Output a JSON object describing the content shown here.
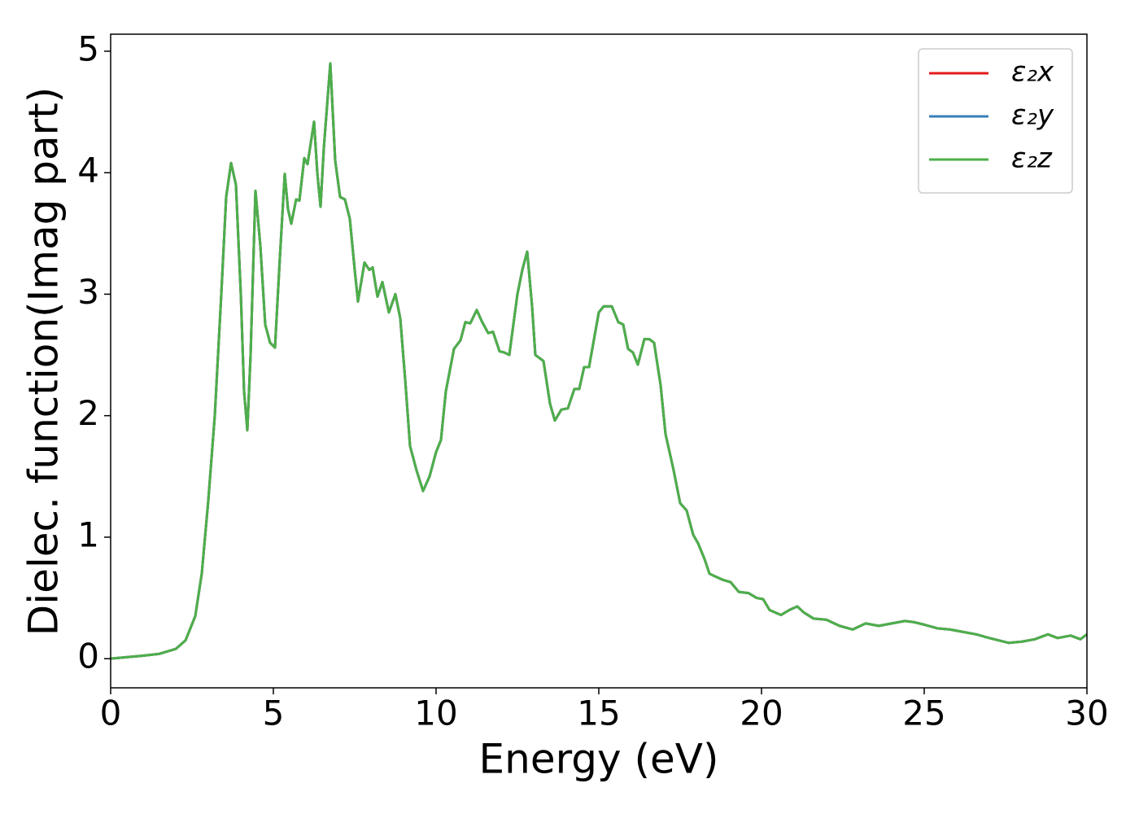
{
  "chart_data": {
    "type": "line",
    "xlabel": "Energy (eV)",
    "ylabel": "Dielec. function(Imag part)",
    "x": [
      0,
      1,
      1.5,
      2,
      2.3,
      2.6,
      2.8,
      3.0,
      3.2,
      3.4,
      3.55,
      3.7,
      3.85,
      4.0,
      4.1,
      4.2,
      4.3,
      4.45,
      4.6,
      4.75,
      4.9,
      5.05,
      5.2,
      5.35,
      5.45,
      5.55,
      5.7,
      5.8,
      5.95,
      6.05,
      6.25,
      6.35,
      6.45,
      6.55,
      6.75,
      6.9,
      7.05,
      7.2,
      7.35,
      7.5,
      7.6,
      7.8,
      7.95,
      8.05,
      8.2,
      8.35,
      8.55,
      8.75,
      8.9,
      9.05,
      9.2,
      9.4,
      9.6,
      9.8,
      10.0,
      10.15,
      10.3,
      10.55,
      10.75,
      10.9,
      11.05,
      11.25,
      11.4,
      11.6,
      11.75,
      11.95,
      12.1,
      12.25,
      12.5,
      12.65,
      12.8,
      12.95,
      13.05,
      13.3,
      13.5,
      13.65,
      13.85,
      14.05,
      14.25,
      14.4,
      14.55,
      14.7,
      15.0,
      15.15,
      15.4,
      15.6,
      15.75,
      15.9,
      16.05,
      16.2,
      16.4,
      16.55,
      16.7,
      16.9,
      17.05,
      17.3,
      17.5,
      17.7,
      17.9,
      18.05,
      18.25,
      18.4,
      18.55,
      18.8,
      19.05,
      19.3,
      19.6,
      19.85,
      20.05,
      20.25,
      20.6,
      20.85,
      21.1,
      21.3,
      21.6,
      22.0,
      22.4,
      22.8,
      23.2,
      23.6,
      24.0,
      24.4,
      24.7,
      25.0,
      25.4,
      25.8,
      26.2,
      26.6,
      27.0,
      27.3,
      27.6,
      28.0,
      28.4,
      28.8,
      29.1,
      29.5,
      29.8,
      30.0
    ],
    "series": [
      {
        "name": "ε₂x",
        "color": "#e41a1c",
        "values": [
          0,
          0.025,
          0.04,
          0.08,
          0.15,
          0.35,
          0.7,
          1.3,
          2.0,
          3.0,
          3.8,
          4.08,
          3.9,
          3.0,
          2.2,
          1.88,
          2.5,
          3.85,
          3.4,
          2.75,
          2.6,
          2.56,
          3.3,
          3.99,
          3.7,
          3.58,
          3.78,
          3.77,
          4.12,
          4.07,
          4.42,
          4.0,
          3.72,
          4.2,
          4.9,
          4.1,
          3.8,
          3.78,
          3.62,
          3.2,
          2.94,
          3.26,
          3.2,
          3.22,
          2.98,
          3.1,
          2.85,
          3.0,
          2.8,
          2.3,
          1.75,
          1.55,
          1.38,
          1.5,
          1.7,
          1.8,
          2.2,
          2.55,
          2.62,
          2.77,
          2.76,
          2.87,
          2.78,
          2.68,
          2.69,
          2.53,
          2.52,
          2.5,
          3.0,
          3.2,
          3.35,
          2.9,
          2.5,
          2.45,
          2.1,
          1.96,
          2.05,
          2.06,
          2.22,
          2.22,
          2.4,
          2.4,
          2.85,
          2.9,
          2.9,
          2.77,
          2.75,
          2.55,
          2.52,
          2.42,
          2.63,
          2.63,
          2.6,
          2.25,
          1.85,
          1.55,
          1.28,
          1.22,
          1.02,
          0.95,
          0.82,
          0.7,
          0.68,
          0.65,
          0.63,
          0.55,
          0.54,
          0.5,
          0.49,
          0.4,
          0.36,
          0.4,
          0.43,
          0.38,
          0.33,
          0.32,
          0.27,
          0.24,
          0.29,
          0.27,
          0.29,
          0.31,
          0.3,
          0.28,
          0.25,
          0.24,
          0.22,
          0.2,
          0.17,
          0.15,
          0.13,
          0.14,
          0.16,
          0.2,
          0.17,
          0.19,
          0.16,
          0.2
        ]
      },
      {
        "name": "ε₂y",
        "color": "#377eb8",
        "values": [
          0,
          0.025,
          0.04,
          0.08,
          0.15,
          0.35,
          0.7,
          1.3,
          2.0,
          3.0,
          3.8,
          4.08,
          3.9,
          3.0,
          2.2,
          1.88,
          2.5,
          3.85,
          3.4,
          2.75,
          2.6,
          2.56,
          3.3,
          3.99,
          3.7,
          3.58,
          3.78,
          3.77,
          4.12,
          4.07,
          4.42,
          4.0,
          3.72,
          4.2,
          4.9,
          4.1,
          3.8,
          3.78,
          3.62,
          3.2,
          2.94,
          3.26,
          3.2,
          3.22,
          2.98,
          3.1,
          2.85,
          3.0,
          2.8,
          2.3,
          1.75,
          1.55,
          1.38,
          1.5,
          1.7,
          1.8,
          2.2,
          2.55,
          2.62,
          2.77,
          2.76,
          2.87,
          2.78,
          2.68,
          2.69,
          2.53,
          2.52,
          2.5,
          3.0,
          3.2,
          3.35,
          2.9,
          2.5,
          2.45,
          2.1,
          1.96,
          2.05,
          2.06,
          2.22,
          2.22,
          2.4,
          2.4,
          2.85,
          2.9,
          2.9,
          2.77,
          2.75,
          2.55,
          2.52,
          2.42,
          2.63,
          2.63,
          2.6,
          2.25,
          1.85,
          1.55,
          1.28,
          1.22,
          1.02,
          0.95,
          0.82,
          0.7,
          0.68,
          0.65,
          0.63,
          0.55,
          0.54,
          0.5,
          0.49,
          0.4,
          0.36,
          0.4,
          0.43,
          0.38,
          0.33,
          0.32,
          0.27,
          0.24,
          0.29,
          0.27,
          0.29,
          0.31,
          0.3,
          0.28,
          0.25,
          0.24,
          0.22,
          0.2,
          0.17,
          0.15,
          0.13,
          0.14,
          0.16,
          0.2,
          0.17,
          0.19,
          0.16,
          0.2
        ]
      },
      {
        "name": "ε₂z",
        "color": "#4daf4a",
        "values": [
          0,
          0.025,
          0.04,
          0.08,
          0.15,
          0.35,
          0.7,
          1.3,
          2.0,
          3.0,
          3.8,
          4.08,
          3.9,
          3.0,
          2.2,
          1.88,
          2.5,
          3.85,
          3.4,
          2.75,
          2.6,
          2.56,
          3.3,
          3.99,
          3.7,
          3.58,
          3.78,
          3.77,
          4.12,
          4.07,
          4.42,
          4.0,
          3.72,
          4.2,
          4.9,
          4.1,
          3.8,
          3.78,
          3.62,
          3.2,
          2.94,
          3.26,
          3.2,
          3.22,
          2.98,
          3.1,
          2.85,
          3.0,
          2.8,
          2.3,
          1.75,
          1.55,
          1.38,
          1.5,
          1.7,
          1.8,
          2.2,
          2.55,
          2.62,
          2.77,
          2.76,
          2.87,
          2.78,
          2.68,
          2.69,
          2.53,
          2.52,
          2.5,
          3.0,
          3.2,
          3.35,
          2.9,
          2.5,
          2.45,
          2.1,
          1.96,
          2.05,
          2.06,
          2.22,
          2.22,
          2.4,
          2.4,
          2.85,
          2.9,
          2.9,
          2.77,
          2.75,
          2.55,
          2.52,
          2.42,
          2.63,
          2.63,
          2.6,
          2.25,
          1.85,
          1.55,
          1.28,
          1.22,
          1.02,
          0.95,
          0.82,
          0.7,
          0.68,
          0.65,
          0.63,
          0.55,
          0.54,
          0.5,
          0.49,
          0.4,
          0.36,
          0.4,
          0.43,
          0.38,
          0.33,
          0.32,
          0.27,
          0.24,
          0.29,
          0.27,
          0.29,
          0.31,
          0.3,
          0.28,
          0.25,
          0.24,
          0.22,
          0.2,
          0.17,
          0.15,
          0.13,
          0.14,
          0.16,
          0.2,
          0.17,
          0.19,
          0.16,
          0.2
        ]
      }
    ],
    "xlim": [
      0,
      30
    ],
    "xticks": [
      0,
      5,
      10,
      15,
      20,
      25,
      30
    ],
    "ylim": [
      -0.24,
      5.14
    ],
    "yticks": [
      0,
      1,
      2,
      3,
      4,
      5
    ],
    "grid": false,
    "legend": "upper right"
  }
}
